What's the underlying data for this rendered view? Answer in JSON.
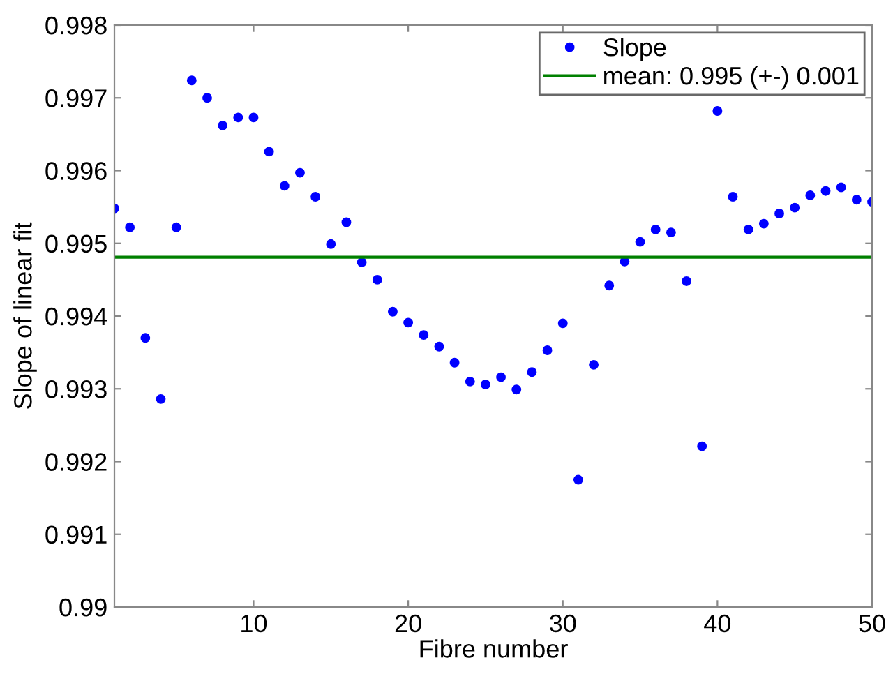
{
  "chart_data": {
    "type": "scatter",
    "xlabel": "Fibre number",
    "ylabel": "Slope of linear fit",
    "x": [
      1,
      2,
      3,
      4,
      5,
      6,
      7,
      8,
      9,
      10,
      11,
      12,
      13,
      14,
      15,
      16,
      17,
      18,
      19,
      20,
      21,
      22,
      23,
      24,
      25,
      26,
      27,
      28,
      29,
      30,
      31,
      32,
      33,
      34,
      35,
      36,
      37,
      38,
      39,
      40,
      41,
      42,
      43,
      44,
      45,
      46,
      47,
      48,
      49,
      50
    ],
    "series": [
      {
        "name": "Slope",
        "color": "#0000ff",
        "marker": "circle",
        "values": [
          0.99548,
          0.99522,
          0.9937,
          0.99286,
          0.99522,
          0.99724,
          0.997,
          0.99662,
          0.99673,
          0.99673,
          0.99626,
          0.99579,
          0.99597,
          0.99564,
          0.99499,
          0.99529,
          0.99474,
          0.9945,
          0.99406,
          0.99391,
          0.99374,
          0.99358,
          0.99336,
          0.9931,
          0.99306,
          0.99316,
          0.99299,
          0.99323,
          0.99353,
          0.9939,
          0.99175,
          0.99333,
          0.99442,
          0.99475,
          0.99502,
          0.99519,
          0.99515,
          0.99448,
          0.99221,
          0.99682,
          0.99564,
          0.99519,
          0.99527,
          0.99541,
          0.99549,
          0.99566,
          0.99572,
          0.99577,
          0.9956,
          0.99557
        ]
      },
      {
        "name": "mean: 0.995 (+-) 0.001",
        "type": "line",
        "color": "#008000",
        "x": [
          1,
          50
        ],
        "values": [
          0.99481,
          0.99481
        ]
      }
    ],
    "xlim": [
      1,
      50
    ],
    "xticks": [
      10,
      20,
      30,
      40,
      50
    ],
    "ylim": [
      0.99,
      0.998
    ],
    "yticks": [
      {
        "value": 0.99,
        "label": "0.99"
      },
      0.991,
      0.992,
      0.993,
      0.994,
      0.995,
      0.996,
      0.997,
      0.998
    ],
    "grid": false,
    "legend": "top right"
  }
}
